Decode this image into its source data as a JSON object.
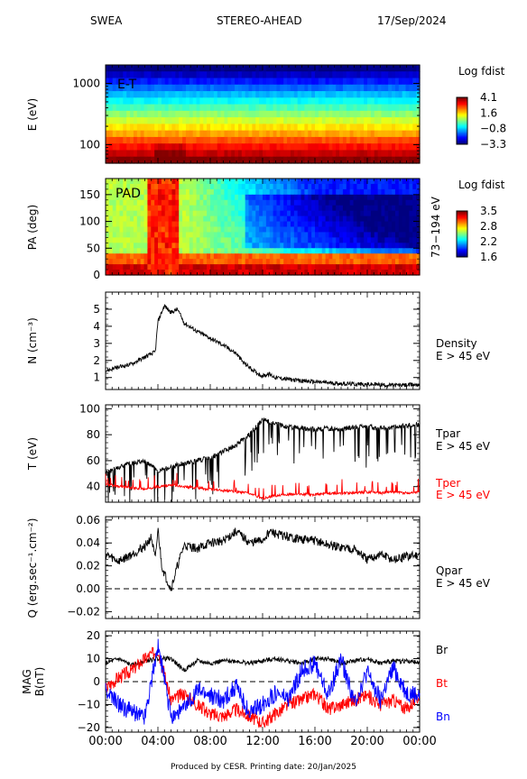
{
  "header": {
    "instrument": "SWEA",
    "spacecraft": "STEREO-AHEAD",
    "date": "17/Sep/2024"
  },
  "footer": "Produced by CESR.   Printing date: 20/Jan/2025",
  "time_axis": [
    "00:00",
    "04:00",
    "08:00",
    "12:00",
    "16:00",
    "20:00",
    "00:00"
  ],
  "chart_data": [
    {
      "type": "heatmap",
      "panel_label": "E-T",
      "ylabel": "E (eV)",
      "ylog": true,
      "ylim": [
        50,
        2000
      ],
      "yticks": [
        "1000",
        "100"
      ],
      "colorbar": {
        "title": "Log fdist",
        "ticks": [
          "4.1",
          "1.6",
          "−0.8",
          "−3.3"
        ],
        "range": [
          -3.3,
          4.1
        ]
      },
      "energy_rows_level": [
        4.1,
        3.6,
        3.1,
        2.6,
        2.0,
        1.5,
        1.0,
        0.5,
        0.0,
        -0.5,
        -1.0,
        -1.6,
        -2.2,
        -2.8,
        -3.3
      ]
    },
    {
      "type": "heatmap",
      "panel_label": "PAD",
      "ylabel": "PA (deg)",
      "ylim": [
        0,
        180
      ],
      "yticks": [
        "150",
        "100",
        "50",
        "0"
      ],
      "right_label": "73−194 eV",
      "colorbar": {
        "title": "Log fdist",
        "ticks": [
          "3.5",
          "2.8",
          "2.2",
          "1.6"
        ],
        "range": [
          1.6,
          3.5
        ]
      }
    },
    {
      "type": "line",
      "ylabel": "N (cm⁻³)",
      "ylim": [
        0.3,
        6
      ],
      "yticks": [
        "5",
        "4",
        "3",
        "2",
        "1"
      ],
      "right_label": [
        "Density",
        "E > 45 eV"
      ],
      "series": [
        {
          "color": "#000000",
          "x_hours": [
            0,
            1,
            2,
            3,
            3.8,
            4,
            4.5,
            5,
            5.5,
            6,
            7,
            8,
            9,
            10,
            10.5,
            11,
            11.5,
            12,
            12.5,
            13,
            14,
            15,
            16,
            17,
            18,
            19,
            20,
            21,
            22,
            23,
            24
          ],
          "values": [
            1.4,
            1.6,
            1.8,
            2.2,
            2.5,
            4.3,
            5.2,
            4.8,
            5.0,
            4.2,
            3.7,
            3.3,
            2.9,
            2.4,
            1.9,
            1.6,
            1.3,
            1.1,
            1.2,
            1.0,
            0.9,
            0.8,
            0.75,
            0.7,
            0.65,
            0.62,
            0.6,
            0.58,
            0.55,
            0.55,
            0.6
          ]
        }
      ]
    },
    {
      "type": "line",
      "ylabel": "T (eV)",
      "ylim": [
        28,
        103
      ],
      "yticks": [
        "100",
        "80",
        "60",
        "40"
      ],
      "series": [
        {
          "name": "Tpar",
          "sublabel": "E > 45 eV",
          "color": "#000000",
          "x_hours": [
            0,
            1,
            2,
            3,
            4,
            5,
            6,
            7,
            8,
            9,
            10,
            11,
            12,
            13,
            14,
            15,
            16,
            17,
            18,
            19,
            20,
            21,
            22,
            23,
            24
          ],
          "values": [
            50,
            55,
            58,
            60,
            52,
            55,
            58,
            60,
            62,
            67,
            72,
            80,
            92,
            88,
            86,
            85,
            84,
            85,
            84,
            86,
            86,
            85,
            86,
            87,
            88
          ]
        },
        {
          "name": "Tper",
          "sublabel": "E > 45 eV",
          "color": "#ff0000",
          "x_hours": [
            0,
            1,
            2,
            3,
            4,
            5,
            6,
            7,
            8,
            9,
            10,
            11,
            12,
            13,
            14,
            15,
            16,
            17,
            18,
            19,
            20,
            21,
            22,
            23,
            24
          ],
          "values": [
            42,
            40,
            39,
            38,
            40,
            41,
            40,
            39,
            38,
            37,
            36,
            35,
            31,
            33,
            34,
            34,
            34,
            35,
            35,
            35,
            36,
            35,
            36,
            35,
            36
          ]
        }
      ]
    },
    {
      "type": "line",
      "ylabel": "Q (erg.sec⁻¹.cm⁻²)",
      "ylim": [
        -0.026,
        0.063
      ],
      "yticks": [
        "0.06",
        "0.04",
        "0.02",
        "0.00",
        "−0.02"
      ],
      "zero_line": true,
      "right_label": [
        "Qpar",
        "E > 45 eV"
      ],
      "series": [
        {
          "color": "#000000",
          "x_hours": [
            0,
            1,
            2,
            3,
            3.5,
            3.8,
            4,
            4.3,
            4.6,
            5,
            5.5,
            6,
            7,
            8,
            9,
            10,
            11,
            12,
            12.5,
            13,
            14,
            15,
            16,
            17,
            18,
            19,
            20,
            21,
            22,
            23,
            24
          ],
          "values": [
            0.03,
            0.024,
            0.03,
            0.037,
            0.045,
            0.025,
            0.052,
            0.02,
            0.01,
            0.0,
            0.02,
            0.038,
            0.035,
            0.04,
            0.042,
            0.05,
            0.04,
            0.042,
            0.05,
            0.048,
            0.045,
            0.043,
            0.042,
            0.038,
            0.036,
            0.035,
            0.025,
            0.03,
            0.025,
            0.028,
            0.03
          ]
        }
      ]
    },
    {
      "type": "line",
      "ylabel": "MAG B(nT)",
      "ylim": [
        -22,
        22
      ],
      "yticks": [
        "20",
        "10",
        "0",
        "−10",
        "−20"
      ],
      "zero_line": true,
      "series": [
        {
          "name": "Br",
          "color": "#000000",
          "x_hours": [
            0,
            1,
            2,
            3,
            4,
            5,
            6,
            7,
            8,
            9,
            10,
            11,
            12,
            13,
            14,
            15,
            16,
            17,
            18,
            19,
            20,
            21,
            22,
            23,
            24
          ],
          "values": [
            8,
            10,
            7,
            9,
            10,
            10,
            5,
            9,
            8,
            9,
            9,
            8,
            9,
            10,
            9,
            8,
            10,
            10,
            8,
            9,
            10,
            8,
            9,
            9,
            8
          ]
        },
        {
          "name": "Bt",
          "color": "#ff0000",
          "x_hours": [
            0,
            1,
            2,
            3,
            4,
            5,
            6,
            7,
            8,
            9,
            10,
            11,
            12,
            13,
            14,
            15,
            16,
            17,
            18,
            19,
            20,
            21,
            22,
            23,
            24
          ],
          "values": [
            -3,
            2,
            5,
            10,
            14,
            -8,
            -5,
            -10,
            -14,
            -15,
            -12,
            -15,
            -18,
            -14,
            -10,
            -8,
            -5,
            -12,
            -10,
            -8,
            -6,
            -10,
            -8,
            -12,
            -6
          ]
        },
        {
          "name": "Bn",
          "color": "#0000ff",
          "x_hours": [
            0,
            1,
            2,
            3,
            4,
            5,
            6,
            7,
            8,
            9,
            10,
            11,
            12,
            13,
            14,
            15,
            16,
            17,
            18,
            19,
            20,
            21,
            22,
            23,
            24
          ],
          "values": [
            -4,
            -10,
            -13,
            -15,
            16,
            -15,
            -12,
            -4,
            -6,
            -8,
            -2,
            -14,
            -10,
            -5,
            -8,
            5,
            8,
            -6,
            10,
            -9,
            4,
            -8,
            6,
            -5,
            -6
          ]
        }
      ]
    }
  ]
}
